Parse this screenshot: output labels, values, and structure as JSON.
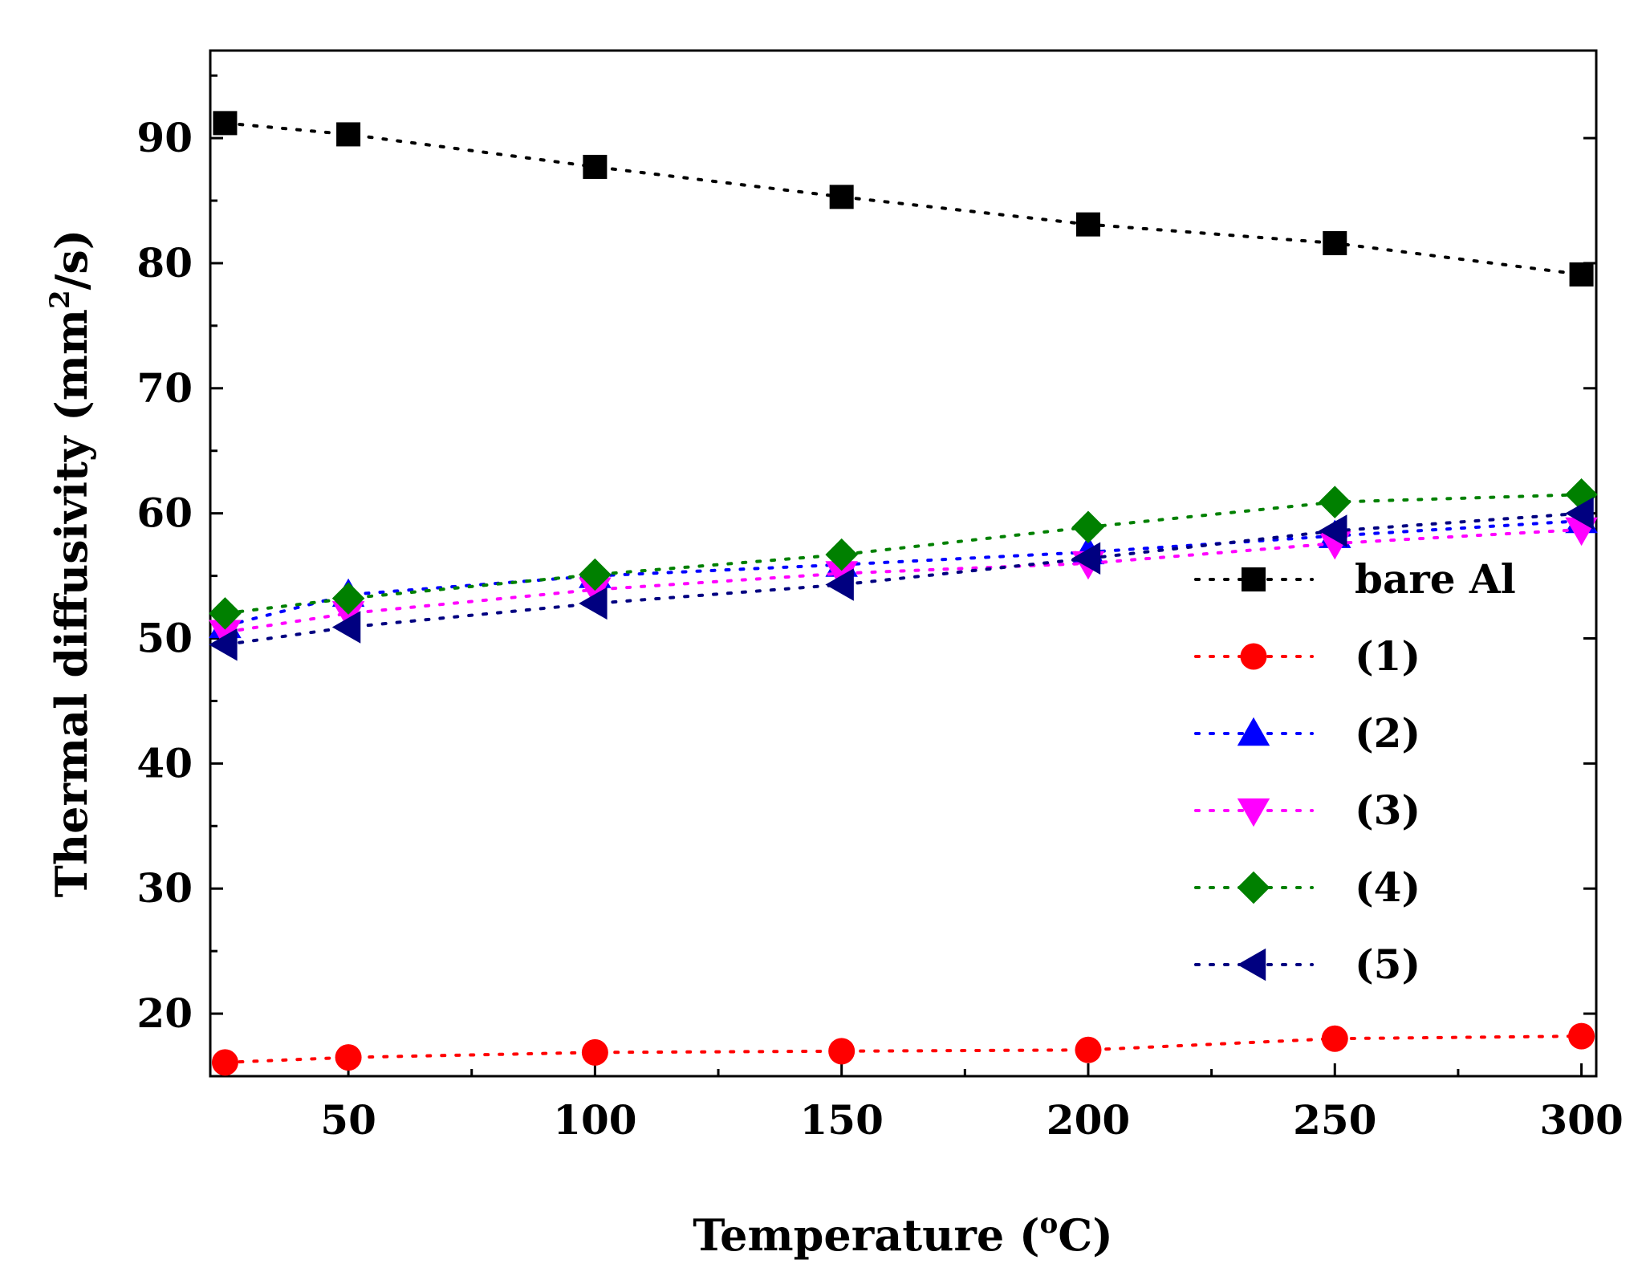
{
  "chart_data": {
    "type": "line",
    "title": "",
    "xlabel": "Temperature (",
    "xlabel_sup": "o",
    "xlabel_suffix": "C)",
    "ylabel": "Thermal diffusivity (mm",
    "ylabel_sup": "2",
    "ylabel_suffix": "/s)",
    "xlim": [
      22,
      303
    ],
    "ylim": [
      15,
      97
    ],
    "x_ticks": [
      50,
      100,
      150,
      200,
      250,
      300
    ],
    "y_ticks": [
      20,
      30,
      40,
      50,
      60,
      70,
      80,
      90
    ],
    "x_tick_labels": [
      "50",
      "100",
      "150",
      "200",
      "250",
      "300"
    ],
    "y_tick_labels": [
      "20",
      "30",
      "40",
      "50",
      "60",
      "70",
      "80",
      "90"
    ],
    "x": [
      25,
      50,
      100,
      150,
      200,
      250,
      300
    ],
    "legend_position": "right-middle",
    "series": [
      {
        "name": "bare Al",
        "color": "#000000",
        "marker": "square",
        "values": [
          91.2,
          90.3,
          87.7,
          85.3,
          83.1,
          81.6,
          79.1
        ]
      },
      {
        "name": "(1)",
        "color": "#ff0000",
        "marker": "circle",
        "values": [
          16.1,
          16.5,
          16.9,
          17.0,
          17.1,
          18.0,
          18.2
        ]
      },
      {
        "name": "(2)",
        "color": "#0000ff",
        "marker": "triangle-up",
        "values": [
          51.0,
          53.5,
          55.0,
          55.9,
          56.9,
          58.2,
          59.4
        ]
      },
      {
        "name": "(3)",
        "color": "#ff00ff",
        "marker": "triangle-down",
        "values": [
          50.5,
          52.0,
          53.9,
          55.2,
          56.0,
          57.6,
          58.7
        ]
      },
      {
        "name": "(4)",
        "color": "#008000",
        "marker": "diamond",
        "values": [
          52.0,
          53.2,
          55.1,
          56.7,
          58.9,
          60.9,
          61.5
        ]
      },
      {
        "name": "(5)",
        "color": "#000080",
        "marker": "triangle-left",
        "values": [
          49.5,
          50.9,
          52.8,
          54.3,
          56.4,
          58.6,
          60.0
        ]
      }
    ]
  }
}
